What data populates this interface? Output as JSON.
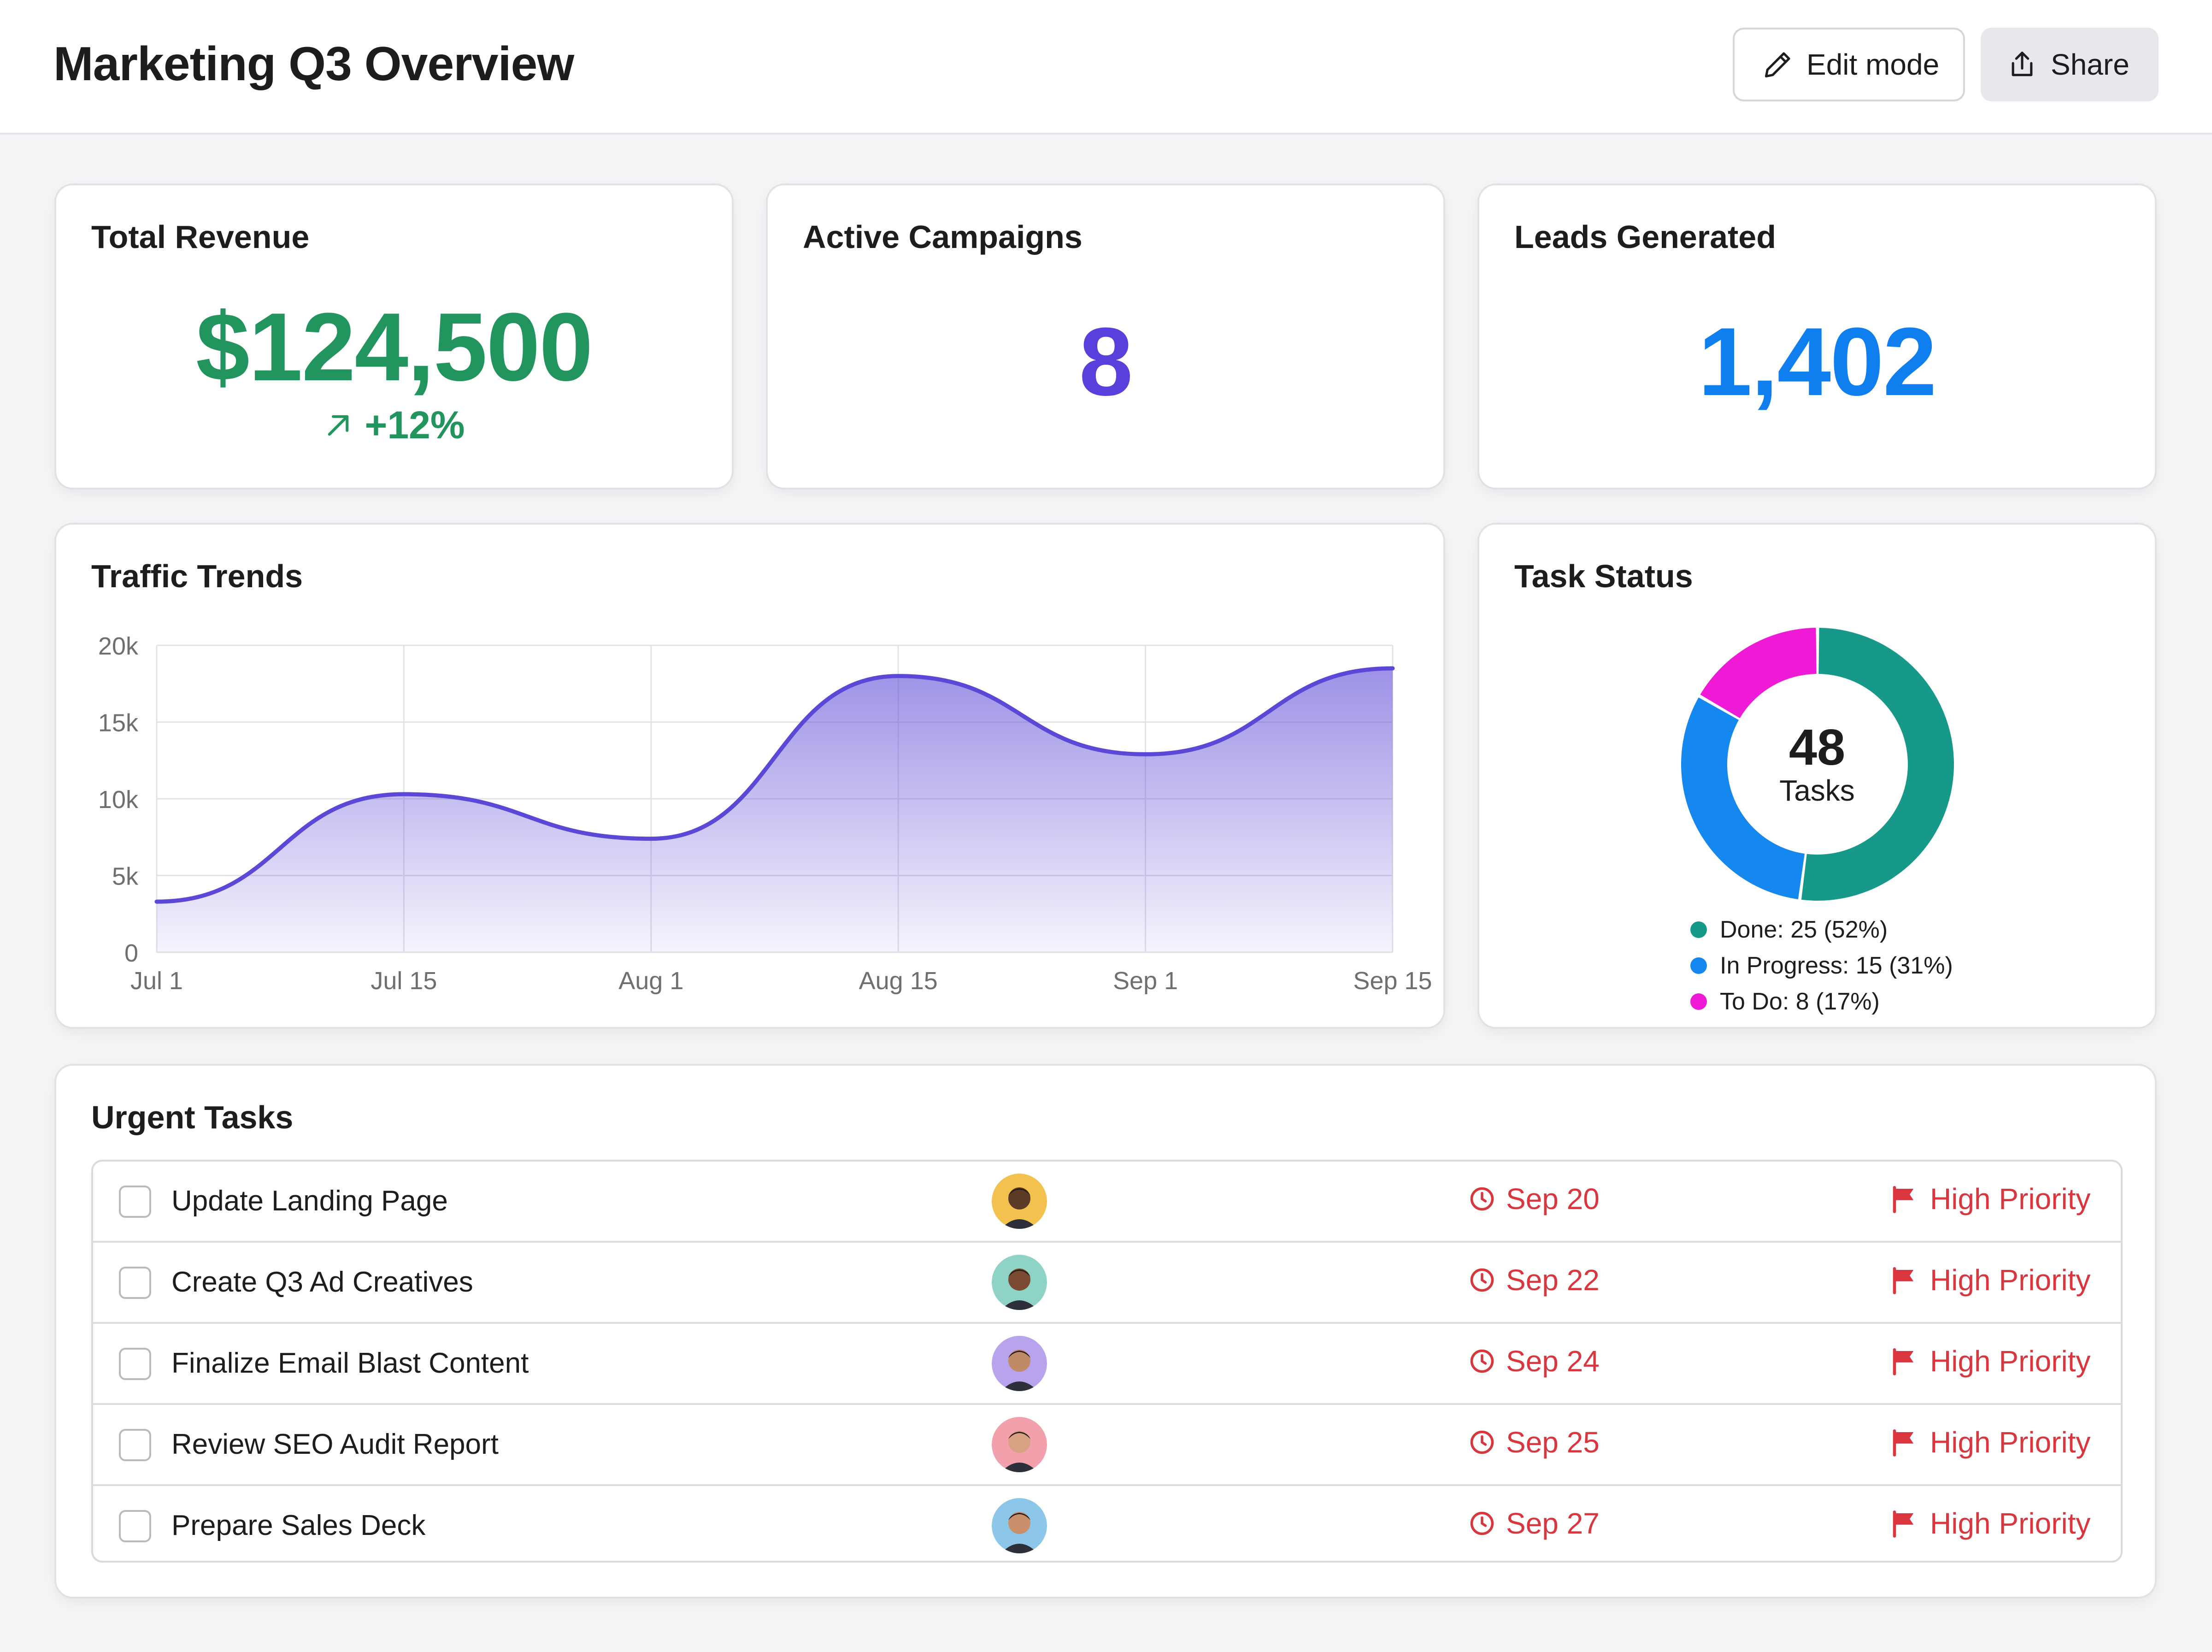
{
  "header": {
    "title": "Marketing Q3 Overview",
    "edit_label": "Edit mode",
    "share_label": "Share"
  },
  "kpis": {
    "revenue": {
      "label": "Total Revenue",
      "value": "$124,500",
      "change": "+12%",
      "color": "#22945e"
    },
    "campaigns": {
      "label": "Active Campaigns",
      "value": "8",
      "color": "#5b3fdc"
    },
    "leads": {
      "label": "Leads Generated",
      "value": "1,402",
      "color": "#0f7ff0"
    }
  },
  "traffic": {
    "title": "Traffic Trends"
  },
  "chart_data": [
    {
      "type": "area",
      "title": "Traffic Trends",
      "x": [
        "2024-07-01",
        "2024-07-15",
        "2024-08-01",
        "2024-08-15",
        "2024-09-01",
        "2024-09-15"
      ],
      "x_tick_labels": [
        "Jul 1",
        "Jul 15",
        "Aug 1",
        "Aug 15",
        "Sep 1",
        "Sep 15"
      ],
      "y_tick_labels": [
        "0",
        "5k",
        "10k",
        "15k",
        "20k"
      ],
      "y_ticks": [
        0,
        5000,
        10000,
        15000,
        20000
      ],
      "series": [
        {
          "values": [
            3300,
            10300,
            7400,
            18000,
            12900,
            18500
          ]
        }
      ],
      "ylim": [
        0,
        20000
      ],
      "grid": true,
      "color": "#5b48d6"
    },
    {
      "type": "pie",
      "variant": "donut",
      "title": "Task Status",
      "center_value": "48",
      "center_label": "Tasks",
      "categories": [
        "Done",
        "In Progress",
        "To Do"
      ],
      "values": [
        25,
        15,
        8
      ],
      "legend_labels": [
        "Done: 25 (52%)",
        "In Progress: 15 (31%)",
        "To Do: 8 (17%)"
      ],
      "colors": [
        "#17998a",
        "#1488ee",
        "#ee1ad6"
      ],
      "legend_placement": "bottom"
    }
  ],
  "task_status": {
    "title": "Task Status",
    "total": "48",
    "total_label": "Tasks"
  },
  "urgent": {
    "title": "Urgent Tasks",
    "tasks": [
      {
        "name": "Update Landing Page",
        "due": "Sep 20",
        "priority": "High Priority",
        "avatar_color": "#f2c14e",
        "skin": "#5b3a26"
      },
      {
        "name": "Create Q3 Ad Creatives",
        "due": "Sep 22",
        "priority": "High Priority",
        "avatar_color": "#8ed3c6",
        "skin": "#7a4a32"
      },
      {
        "name": "Finalize Email Blast Content",
        "due": "Sep 24",
        "priority": "High Priority",
        "avatar_color": "#b7a4ec",
        "skin": "#c08a66"
      },
      {
        "name": "Review SEO Audit Report",
        "due": "Sep 25",
        "priority": "High Priority",
        "avatar_color": "#f2a0ac",
        "skin": "#d9a183"
      },
      {
        "name": "Prepare Sales Deck",
        "due": "Sep 27",
        "priority": "High Priority",
        "avatar_color": "#8cc7ea",
        "skin": "#c98e6a"
      }
    ]
  },
  "colors": {
    "accent_purple": "#5b48d6",
    "priority_red": "#d9363e"
  },
  "icons": {
    "edit": "pencil-icon",
    "share": "share-icon",
    "trend": "arrow-up-right-icon",
    "due": "clock-icon",
    "priority": "flag-icon"
  }
}
